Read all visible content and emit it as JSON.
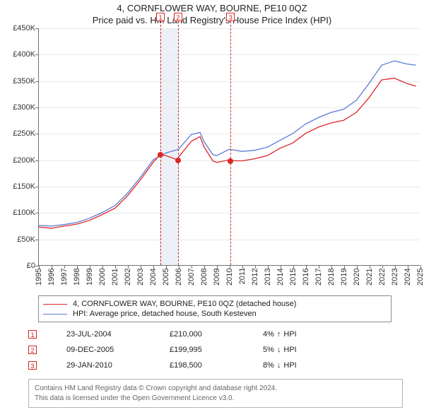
{
  "header": {
    "address": "4, CORNFLOWER WAY, BOURNE, PE10 0QZ",
    "subtitle": "Price paid vs. HM Land Registry's House Price Index (HPI)"
  },
  "chart": {
    "type": "line",
    "background_color": "#ffffff",
    "grid_color": "#e9e9e9",
    "axis_color": "#737373",
    "y": {
      "min": 0,
      "max": 450000,
      "step": 50000,
      "labels": [
        "£0",
        "£50K",
        "£100K",
        "£150K",
        "£200K",
        "£250K",
        "£300K",
        "£350K",
        "£400K",
        "£450K"
      ],
      "label_fontsize": 11
    },
    "x": {
      "min": 1995,
      "max": 2025,
      "labels": [
        "1995",
        "1996",
        "1997",
        "1998",
        "1999",
        "2000",
        "2001",
        "2002",
        "2003",
        "2004",
        "2005",
        "2006",
        "2007",
        "2008",
        "2009",
        "2010",
        "2011",
        "2012",
        "2013",
        "2014",
        "2015",
        "2016",
        "2017",
        "2018",
        "2019",
        "2020",
        "2021",
        "2022",
        "2023",
        "2024",
        "2025"
      ],
      "label_fontsize": 11
    },
    "highlight_band": {
      "from": 2004.5,
      "to": 2006,
      "color": "#eef0f7"
    },
    "markers": [
      {
        "id": "1",
        "x": 2004.56,
        "price_y": 210000
      },
      {
        "id": "2",
        "x": 2005.94,
        "price_y": 199995
      },
      {
        "id": "3",
        "x": 2010.08,
        "price_y": 198500
      }
    ],
    "marker_vline_color": "#dc2626",
    "marker_box_border": "#dc2626",
    "series": [
      {
        "name": "property",
        "label": "4, CORNFLOWER WAY, BOURNE, PE10 0QZ (detached house)",
        "color": "#dc2626",
        "line_width": 1.3,
        "data": [
          [
            1995,
            72000
          ],
          [
            1996,
            70000
          ],
          [
            1997,
            74000
          ],
          [
            1998,
            78000
          ],
          [
            1999,
            85000
          ],
          [
            2000,
            96000
          ],
          [
            2001,
            108000
          ],
          [
            2002,
            132000
          ],
          [
            2003,
            162000
          ],
          [
            2004,
            195000
          ],
          [
            2004.56,
            210000
          ],
          [
            2005,
            208000
          ],
          [
            2005.94,
            199995
          ],
          [
            2006,
            205000
          ],
          [
            2007,
            235000
          ],
          [
            2007.7,
            244000
          ],
          [
            2008,
            225000
          ],
          [
            2008.7,
            198000
          ],
          [
            2009,
            195000
          ],
          [
            2010,
            200000
          ],
          [
            2010.08,
            198500
          ],
          [
            2011,
            198000
          ],
          [
            2012,
            202000
          ],
          [
            2013,
            208000
          ],
          [
            2014,
            222000
          ],
          [
            2015,
            232000
          ],
          [
            2016,
            250000
          ],
          [
            2017,
            262000
          ],
          [
            2018,
            270000
          ],
          [
            2019,
            275000
          ],
          [
            2020,
            290000
          ],
          [
            2021,
            318000
          ],
          [
            2022,
            352000
          ],
          [
            2023,
            355000
          ],
          [
            2024,
            345000
          ],
          [
            2024.7,
            340000
          ]
        ]
      },
      {
        "name": "hpi",
        "label": "HPI: Average price, detached house, South Kesteven",
        "color": "#5b7bd5",
        "line_width": 1.3,
        "data": [
          [
            1995,
            75000
          ],
          [
            1996,
            74000
          ],
          [
            1997,
            77000
          ],
          [
            1998,
            81000
          ],
          [
            1999,
            89000
          ],
          [
            2000,
            100000
          ],
          [
            2001,
            113000
          ],
          [
            2002,
            137000
          ],
          [
            2003,
            167000
          ],
          [
            2004,
            200000
          ],
          [
            2005,
            213000
          ],
          [
            2006,
            220000
          ],
          [
            2007,
            248000
          ],
          [
            2007.7,
            252000
          ],
          [
            2008,
            235000
          ],
          [
            2008.7,
            210000
          ],
          [
            2009,
            208000
          ],
          [
            2010,
            220000
          ],
          [
            2011,
            216000
          ],
          [
            2012,
            218000
          ],
          [
            2013,
            224000
          ],
          [
            2014,
            237000
          ],
          [
            2015,
            250000
          ],
          [
            2016,
            268000
          ],
          [
            2017,
            280000
          ],
          [
            2018,
            290000
          ],
          [
            2019,
            296000
          ],
          [
            2020,
            313000
          ],
          [
            2021,
            345000
          ],
          [
            2022,
            380000
          ],
          [
            2023,
            388000
          ],
          [
            2024,
            382000
          ],
          [
            2024.7,
            380000
          ]
        ]
      }
    ]
  },
  "legend": [
    {
      "color": "#dc2626",
      "label": "4, CORNFLOWER WAY, BOURNE, PE10 0QZ (detached house)"
    },
    {
      "color": "#5b7bd5",
      "label": "HPI: Average price, detached house, South Kesteven"
    }
  ],
  "sales": [
    {
      "id": "1",
      "date": "23-JUL-2004",
      "price": "£210,000",
      "diff_pct": "4%",
      "direction": "up",
      "diff_label": "HPI"
    },
    {
      "id": "2",
      "date": "09-DEC-2005",
      "price": "£199,995",
      "diff_pct": "5%",
      "direction": "down",
      "diff_label": "HPI"
    },
    {
      "id": "3",
      "date": "29-JAN-2010",
      "price": "£198,500",
      "diff_pct": "8%",
      "direction": "down",
      "diff_label": "HPI"
    }
  ],
  "arrows": {
    "up": "↑",
    "down": "↓"
  },
  "attribution": {
    "line1": "Contains HM Land Registry data © Crown copyright and database right 2024.",
    "line2": "This data is licensed under the Open Government Licence v3.0."
  }
}
